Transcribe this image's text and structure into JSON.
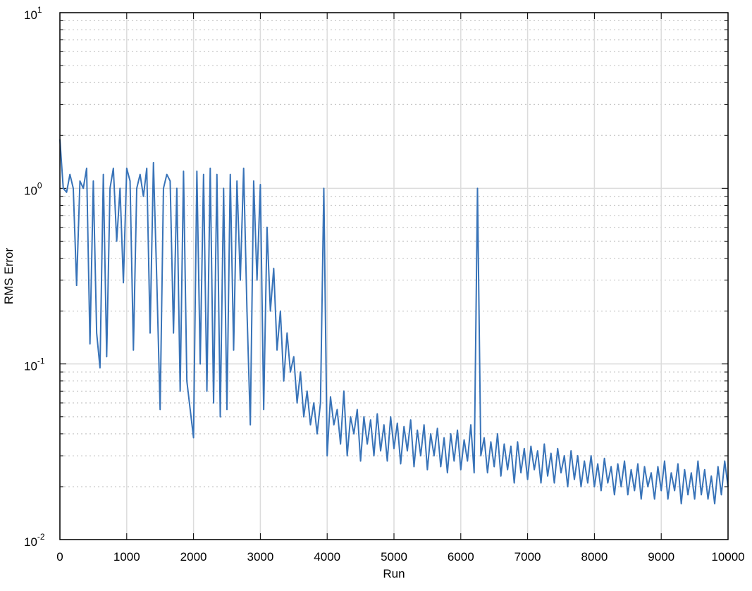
{
  "chart_data": {
    "type": "line",
    "xlabel": "Run",
    "ylabel": "RMS Error",
    "log_y": true,
    "grid": true,
    "minor_grid": true,
    "xlim": [
      0,
      10000
    ],
    "xticks": [
      0,
      1000,
      2000,
      3000,
      4000,
      5000,
      6000,
      7000,
      8000,
      9000,
      10000
    ],
    "ylim": [
      0.01,
      10
    ],
    "yticks": [
      {
        "value": 0.01,
        "label": "10",
        "exponent": "-2"
      },
      {
        "value": 0.1,
        "label": "10",
        "exponent": "-1"
      },
      {
        "value": 1,
        "label": "10",
        "exponent": "0"
      },
      {
        "value": 10,
        "label": "10",
        "exponent": "1"
      }
    ],
    "x": [
      0,
      50,
      100,
      150,
      200,
      250,
      300,
      350,
      400,
      450,
      500,
      550,
      600,
      650,
      700,
      750,
      800,
      850,
      900,
      950,
      1000,
      1050,
      1100,
      1150,
      1200,
      1250,
      1300,
      1350,
      1400,
      1450,
      1500,
      1550,
      1600,
      1650,
      1700,
      1750,
      1800,
      1850,
      1900,
      1950,
      2000,
      2050,
      2100,
      2150,
      2200,
      2250,
      2300,
      2350,
      2400,
      2450,
      2500,
      2550,
      2600,
      2650,
      2700,
      2750,
      2800,
      2850,
      2900,
      2950,
      3000,
      3050,
      3100,
      3150,
      3200,
      3250,
      3300,
      3350,
      3400,
      3450,
      3500,
      3550,
      3600,
      3650,
      3700,
      3750,
      3800,
      3850,
      3900,
      3950,
      4000,
      4050,
      4100,
      4150,
      4200,
      4250,
      4300,
      4350,
      4400,
      4450,
      4500,
      4550,
      4600,
      4650,
      4700,
      4750,
      4800,
      4850,
      4900,
      4950,
      5000,
      5050,
      5100,
      5150,
      5200,
      5250,
      5300,
      5350,
      5400,
      5450,
      5500,
      5550,
      5600,
      5650,
      5700,
      5750,
      5800,
      5850,
      5900,
      5950,
      6000,
      6050,
      6100,
      6150,
      6200,
      6250,
      6300,
      6350,
      6400,
      6450,
      6500,
      6550,
      6600,
      6650,
      6700,
      6750,
      6800,
      6850,
      6900,
      6950,
      7000,
      7050,
      7100,
      7150,
      7200,
      7250,
      7300,
      7350,
      7400,
      7450,
      7500,
      7550,
      7600,
      7650,
      7700,
      7750,
      7800,
      7850,
      7900,
      7950,
      8000,
      8050,
      8100,
      8150,
      8200,
      8250,
      8300,
      8350,
      8400,
      8450,
      8500,
      8550,
      8600,
      8650,
      8700,
      8750,
      8800,
      8850,
      8900,
      8950,
      9000,
      9050,
      9100,
      9150,
      9200,
      9250,
      9300,
      9350,
      9400,
      9450,
      9500,
      9550,
      9600,
      9650,
      9700,
      9750,
      9800,
      9850,
      9900,
      9950,
      10000
    ],
    "series": [
      {
        "color": "#3873b8",
        "values": [
          1.9,
          1.0,
          0.95,
          1.2,
          1.0,
          0.28,
          1.1,
          1.0,
          1.3,
          0.13,
          1.1,
          0.15,
          0.095,
          1.2,
          0.11,
          1.0,
          1.3,
          0.5,
          1.0,
          0.29,
          1.3,
          1.1,
          0.12,
          1.0,
          1.2,
          0.9,
          1.3,
          0.15,
          1.4,
          0.3,
          0.055,
          1.0,
          1.2,
          1.1,
          0.15,
          1.0,
          0.07,
          1.25,
          0.08,
          0.055,
          0.038,
          1.25,
          0.1,
          1.2,
          0.07,
          1.3,
          0.06,
          1.2,
          0.05,
          1.0,
          0.055,
          1.2,
          0.12,
          1.1,
          0.3,
          1.3,
          0.2,
          0.045,
          1.1,
          0.3,
          1.05,
          0.055,
          0.6,
          0.2,
          0.35,
          0.12,
          0.2,
          0.08,
          0.15,
          0.09,
          0.11,
          0.06,
          0.09,
          0.05,
          0.07,
          0.045,
          0.06,
          0.04,
          0.06,
          1.0,
          0.03,
          0.065,
          0.045,
          0.055,
          0.035,
          0.07,
          0.03,
          0.05,
          0.04,
          0.055,
          0.028,
          0.05,
          0.035,
          0.048,
          0.03,
          0.052,
          0.032,
          0.045,
          0.028,
          0.05,
          0.033,
          0.046,
          0.027,
          0.044,
          0.032,
          0.048,
          0.026,
          0.042,
          0.03,
          0.045,
          0.025,
          0.04,
          0.03,
          0.043,
          0.026,
          0.038,
          0.024,
          0.04,
          0.028,
          0.042,
          0.025,
          0.037,
          0.028,
          0.045,
          0.024,
          1.0,
          0.03,
          0.038,
          0.024,
          0.036,
          0.026,
          0.04,
          0.023,
          0.035,
          0.025,
          0.034,
          0.021,
          0.036,
          0.024,
          0.033,
          0.022,
          0.034,
          0.025,
          0.032,
          0.021,
          0.035,
          0.023,
          0.031,
          0.021,
          0.033,
          0.024,
          0.03,
          0.02,
          0.032,
          0.022,
          0.03,
          0.02,
          0.028,
          0.021,
          0.03,
          0.02,
          0.027,
          0.019,
          0.029,
          0.021,
          0.026,
          0.018,
          0.027,
          0.02,
          0.028,
          0.018,
          0.025,
          0.019,
          0.027,
          0.017,
          0.026,
          0.02,
          0.024,
          0.017,
          0.026,
          0.019,
          0.028,
          0.017,
          0.024,
          0.019,
          0.027,
          0.016,
          0.025,
          0.018,
          0.024,
          0.017,
          0.028,
          0.018,
          0.025,
          0.017,
          0.023,
          0.016,
          0.026,
          0.018,
          0.028,
          0.02
        ]
      }
    ]
  }
}
